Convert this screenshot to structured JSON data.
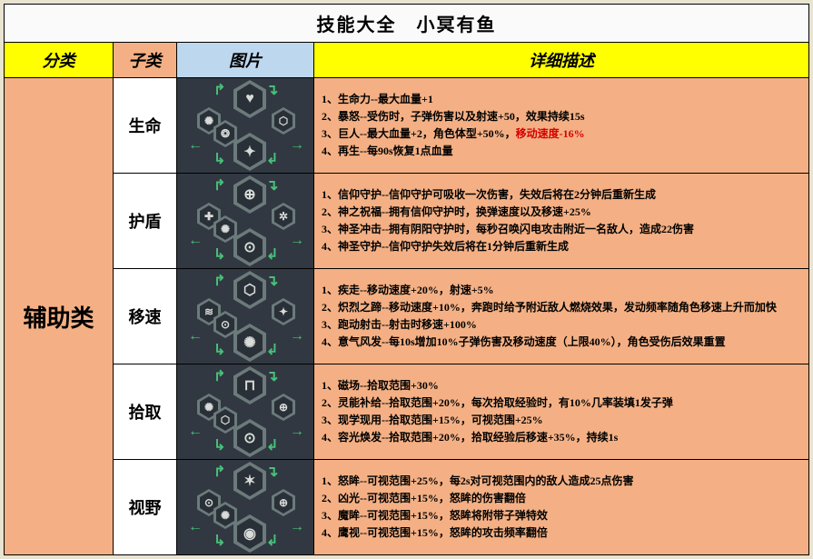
{
  "title": "技能大全 小冥有鱼",
  "headers": {
    "cat": "分类",
    "sub": "子类",
    "img": "图片",
    "desc": "详细描述"
  },
  "category": "辅助类",
  "colors": {
    "yellow": "#ffff00",
    "orange": "#f4b084",
    "blue": "#bdd7ee",
    "panel": "#313842",
    "hex_border": "#6b7a7a",
    "hex_fill": "#2a3038",
    "arrow": "#48c078",
    "neg": "#d60000"
  },
  "rows": [
    {
      "sub": "生命",
      "icons": [
        "♥",
        "✺",
        "⬡",
        "✦",
        "❂"
      ],
      "lines": [
        {
          "t": "1、生命力--最大血量+1"
        },
        {
          "t": "2、暴怒--受伤时，子弹伤害以及射速+50，效果持续15s"
        },
        {
          "pre": "3、巨人--最大血量+2，角色体型+50%，",
          "neg": "移动速度-16%"
        },
        {
          "t": "4、再生--每90s恢复1点血量"
        }
      ]
    },
    {
      "sub": "护盾",
      "icons": [
        "⊕",
        "✚",
        "✲",
        "⊙",
        "✺"
      ],
      "lines": [
        {
          "t": "1、信仰守护--信仰守护可吸收一次伤害，失效后将在2分钟后重新生成"
        },
        {
          "t": "2、神之祝福--拥有信仰守护时，换弹速度以及移速+25%"
        },
        {
          "t": "3、神圣冲击--拥有阴阳守护时，每秒召唤闪电攻击附近一名敌人，造成22伤害"
        },
        {
          "t": "4、神圣守护--信仰守护失效后将在1分钟后重新生成"
        }
      ]
    },
    {
      "sub": "移速",
      "icons": [
        "⬡",
        "≋",
        "✦",
        "✺",
        "⊙"
      ],
      "lines": [
        {
          "t": "1、疾走--移动速度+20%，射速+5%"
        },
        {
          "t": "2、炽烈之蹄--移动速度+10%，奔跑时给予附近敌人燃烧效果，发动频率随角色移速上升而加快"
        },
        {
          "t": "3、跑动射击--射击时移速+100%"
        },
        {
          "t": "4、意气风发--每10s增加10%子弹伤害及移动速度（上限40%），角色受伤后效果重置"
        }
      ]
    },
    {
      "sub": "拾取",
      "icons": [
        "⊓",
        "✺",
        "⊕",
        "⊙",
        "⬡"
      ],
      "lines": [
        {
          "t": "1、磁场--拾取范围+30%"
        },
        {
          "t": "2、灵能补给--拾取范围+20%，每次拾取经验时，有10%几率装填1发子弹"
        },
        {
          "t": "3、现学现用--拾取范围+15%，可视范围+25%"
        },
        {
          "t": "4、容光焕发--拾取范围+20%，拾取经验后移速+35%，持续1s"
        }
      ]
    },
    {
      "sub": "视野",
      "icons": [
        "✶",
        "⊙",
        "⊕",
        "◉",
        "✺"
      ],
      "lines": [
        {
          "t": "1、怒眸--可视范围+25%，每2s对可视范围内的敌人造成25点伤害"
        },
        {
          "t": "2、凶光--可视范围+15%，怒眸的伤害翻倍"
        },
        {
          "t": "3、魔眸--可视范围+15%，怒眸将附带子弹特效"
        },
        {
          "t": "4、鹰视--可视范围+15%，怒眸的攻击频率翻倍"
        }
      ]
    }
  ]
}
